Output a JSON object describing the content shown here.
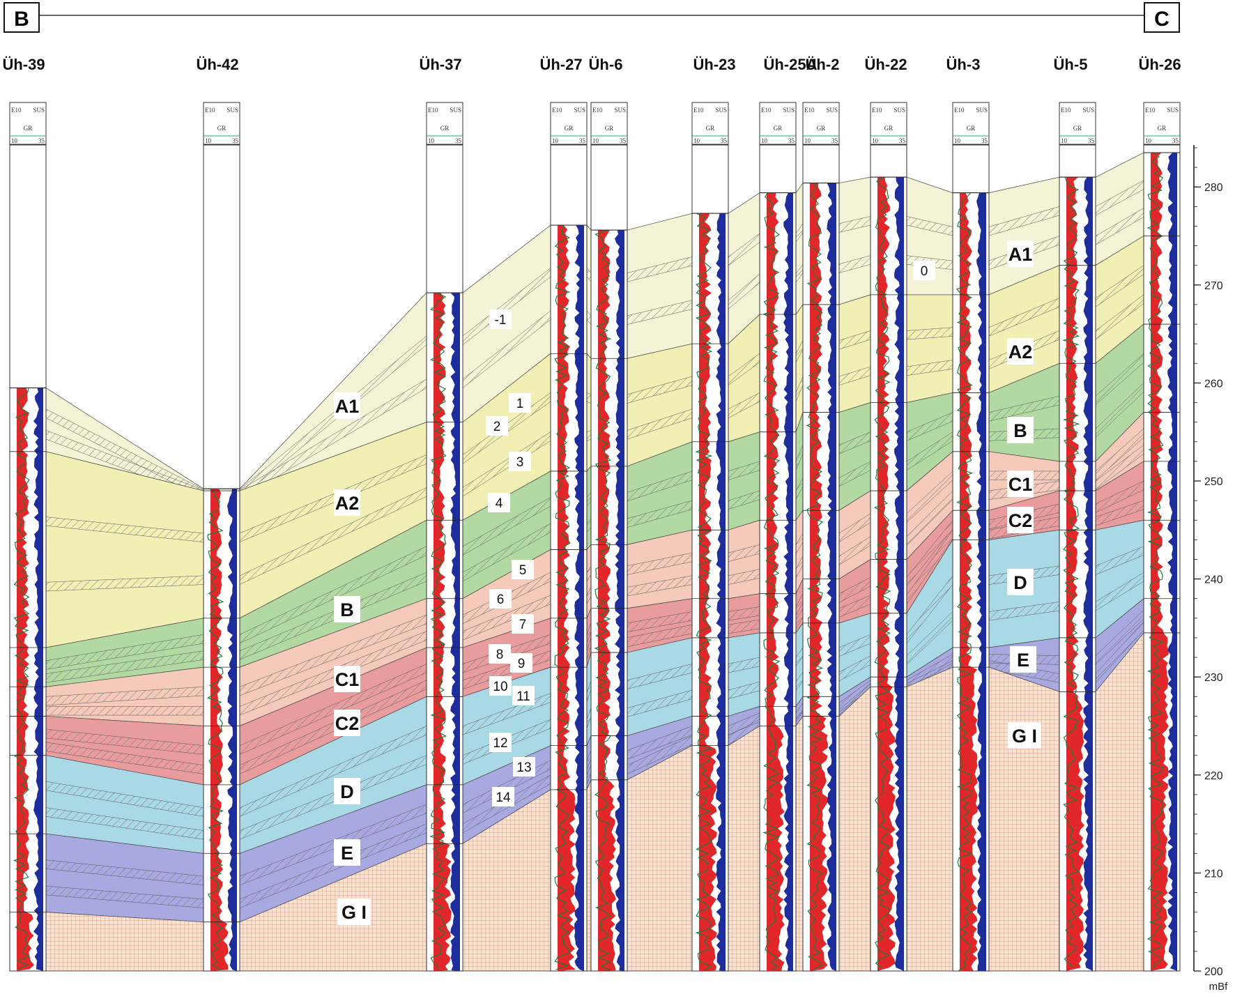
{
  "section": {
    "start_label": "B",
    "end_label": "C"
  },
  "track_header": {
    "resist": "E10",
    "sus": "SUS",
    "gamma": "GR",
    "scale_min": "10",
    "scale_max": "35"
  },
  "axis": {
    "unit": "mBf",
    "min": 200,
    "max": 284,
    "ticks": [
      200,
      210,
      220,
      230,
      240,
      250,
      260,
      270,
      280
    ]
  },
  "wells": [
    {
      "name": "Üh-39",
      "top": 259.5
    },
    {
      "name": "Üh-42",
      "top": 249.2
    },
    {
      "name": "Üh-37",
      "top": 269.2
    },
    {
      "name": "Üh-27",
      "top": 276.1
    },
    {
      "name": "Üh-6",
      "top": 275.6
    },
    {
      "name": "Üh-23",
      "top": 277.3
    },
    {
      "name": "Üh-25A",
      "top": 279.4
    },
    {
      "name": "Üh-2",
      "top": 280.4
    },
    {
      "name": "Üh-22",
      "top": 281.0
    },
    {
      "name": "Üh-3",
      "top": 279.4
    },
    {
      "name": "Üh-5",
      "top": 281.0
    },
    {
      "name": "Üh-26",
      "top": 283.5
    }
  ],
  "units": [
    {
      "label": "A1",
      "color": "#f4f3d6"
    },
    {
      "label": "A2",
      "color": "#f2efb5"
    },
    {
      "label": "B",
      "color": "#b3d9a2"
    },
    {
      "label": "C1",
      "color": "#f5cabb"
    },
    {
      "label": "C2",
      "color": "#e89c9e"
    },
    {
      "label": "D",
      "color": "#aad9e6"
    },
    {
      "label": "E",
      "color": "#a7a9e0"
    },
    {
      "label": "G I",
      "color": "#f7e3d2"
    }
  ],
  "marker_labels": [
    "-1",
    "0",
    "1",
    "2",
    "3",
    "4",
    "5",
    "6",
    "7",
    "8",
    "9",
    "10",
    "11",
    "12",
    "13",
    "14"
  ]
}
